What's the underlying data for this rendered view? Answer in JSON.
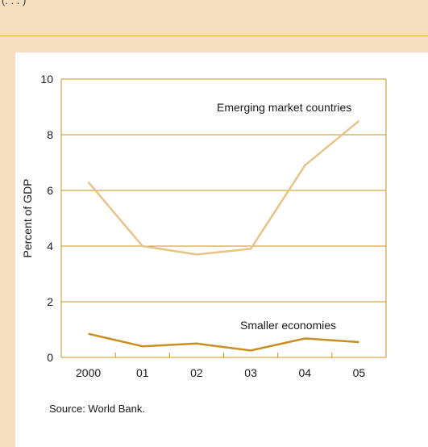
{
  "header": {
    "fragment_text": "(. . . )"
  },
  "colors": {
    "background": "#f5dfbf",
    "panel": "#ffffff",
    "axis": "#c8901e",
    "gridline": "#c8901e",
    "series_emerging": "#e8c389",
    "series_smaller": "#c8901e"
  },
  "chart_data": {
    "type": "line",
    "x": [
      "2000",
      "01",
      "02",
      "03",
      "04",
      "05"
    ],
    "ylabel": "Percent of GDP",
    "xlabel": "",
    "ylim": [
      0,
      10
    ],
    "yticks": [
      0,
      2,
      4,
      6,
      8,
      10
    ],
    "grid": true,
    "series": [
      {
        "name": "Emerging market countries",
        "values": [
          6.3,
          4.0,
          3.7,
          3.9,
          6.9,
          8.5
        ]
      },
      {
        "name": "Smaller economies",
        "values": [
          0.85,
          0.4,
          0.5,
          0.25,
          0.68,
          0.55
        ]
      }
    ]
  },
  "source_note": "Source: World Bank."
}
